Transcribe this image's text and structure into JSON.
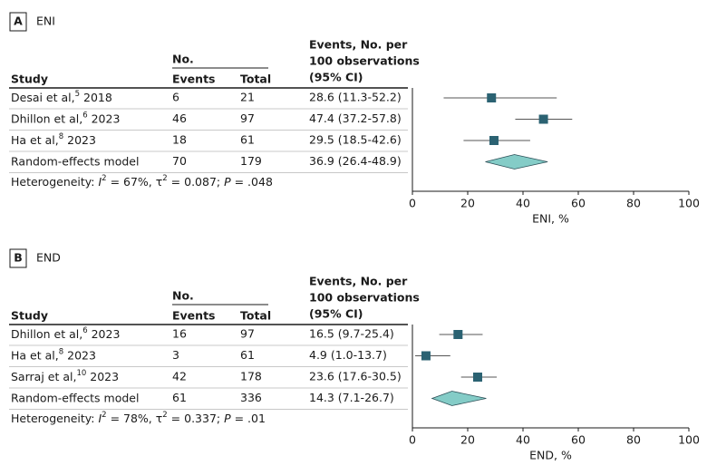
{
  "chart_data": [
    {
      "type": "forest",
      "panel": "A",
      "title": "ENI",
      "columns": {
        "study": "Study",
        "group": "No.",
        "events": "Events",
        "total": "Total",
        "estimate": [
          "Events, No. per",
          "100 observations",
          "(95% CI)"
        ]
      },
      "rows": [
        {
          "study": "Desai et al,",
          "ref": "5",
          "year": "2018"
        },
        {
          "study": "Dhillon et al,",
          "ref": "6",
          "year": "2023"
        },
        {
          "study": "Ha et al,",
          "ref": "8",
          "year": "2023"
        },
        {
          "study": "Random-effects model"
        }
      ],
      "events": [
        6,
        46,
        18,
        70
      ],
      "totals": [
        21,
        97,
        61,
        179
      ],
      "values": [
        28.6,
        47.4,
        29.5,
        36.9
      ],
      "lower": [
        11.3,
        37.2,
        18.5,
        26.4
      ],
      "upper": [
        52.2,
        57.8,
        42.6,
        48.9
      ],
      "value_labels": [
        "28.6 (11.3-52.2)",
        "47.4 (37.2-57.8)",
        "29.5 (18.5-42.6)",
        "36.9 (26.4-48.9)"
      ],
      "heterogeneity": [
        "Heterogeneity: ",
        "I",
        "2",
        " = 67%, τ",
        "2",
        " = 0.087; ",
        "P",
        " = .048"
      ],
      "xlim": [
        0,
        100
      ],
      "xticks": [
        0,
        20,
        40,
        60,
        80,
        100
      ],
      "xlabel": "ENI, %",
      "color": "#2b6272",
      "diamond_color": "#84ccc7"
    },
    {
      "type": "forest",
      "panel": "B",
      "title": "END",
      "columns": {
        "study": "Study",
        "group": "No.",
        "events": "Events",
        "total": "Total",
        "estimate": [
          "Events, No. per",
          "100 observations",
          "(95% CI)"
        ]
      },
      "rows": [
        {
          "study": "Dhillon et al,",
          "ref": "6",
          "year": "2023"
        },
        {
          "study": "Ha et al,",
          "ref": "8",
          "year": "2023"
        },
        {
          "study": "Sarraj et al,",
          "ref": "10",
          "year": "2023"
        },
        {
          "study": "Random-effects model"
        }
      ],
      "events": [
        16,
        3,
        42,
        61
      ],
      "totals": [
        97,
        61,
        178,
        336
      ],
      "values": [
        16.5,
        4.9,
        23.6,
        14.3
      ],
      "lower": [
        9.7,
        1.0,
        17.6,
        7.1
      ],
      "upper": [
        25.4,
        13.7,
        30.5,
        26.7
      ],
      "value_labels": [
        "16.5 (9.7-25.4)",
        "4.9 (1.0-13.7)",
        "23.6 (17.6-30.5)",
        "14.3 (7.1-26.7)"
      ],
      "heterogeneity": [
        "Heterogeneity: ",
        "I",
        "2",
        " = 78%, τ",
        "2",
        " = 0.337; ",
        "P",
        " = .01"
      ],
      "xlim": [
        0,
        100
      ],
      "xticks": [
        0,
        20,
        40,
        60,
        80,
        100
      ],
      "xlabel": "END, %",
      "color": "#2b6272",
      "diamond_color": "#84ccc7"
    }
  ]
}
